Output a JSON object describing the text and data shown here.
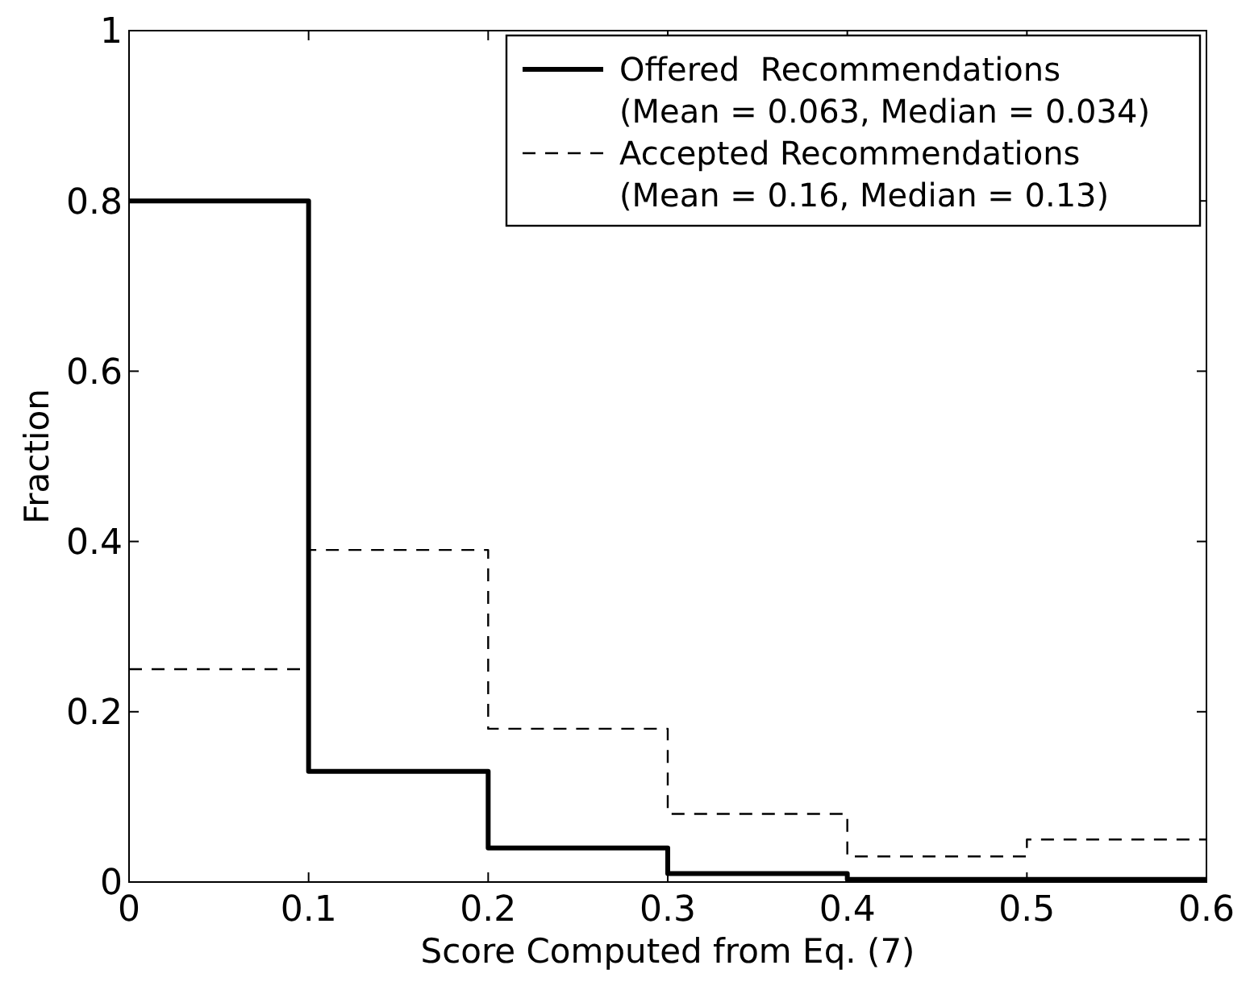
{
  "chart_data": {
    "type": "histogram",
    "xlabel": "Score Computed from Eq. (7)",
    "ylabel": "Fraction",
    "bins": [
      0,
      0.1,
      0.2,
      0.3,
      0.4,
      0.5,
      0.6
    ],
    "series": [
      {
        "name": "Offered  Recommendations\n(Mean = 0.063, Median = 0.034)",
        "color": "#000000",
        "line_style": "solid",
        "values": [
          0.8,
          0.13,
          0.04,
          0.01,
          0.003,
          0.003
        ]
      },
      {
        "name": "Accepted Recommendations\n(Mean = 0.16, Median = 0.13)",
        "color": "#000000",
        "line_style": "dashed",
        "values": [
          0.25,
          0.39,
          0.18,
          0.08,
          0.03,
          0.05
        ]
      }
    ],
    "xlim": [
      0,
      0.6
    ],
    "xticks": [
      0,
      0.1,
      0.2,
      0.3,
      0.4,
      0.5,
      0.6
    ],
    "ylim": [
      0,
      1
    ],
    "yticks": [
      0,
      0.2,
      0.4,
      0.6,
      0.8,
      1
    ],
    "legend": "top right"
  }
}
